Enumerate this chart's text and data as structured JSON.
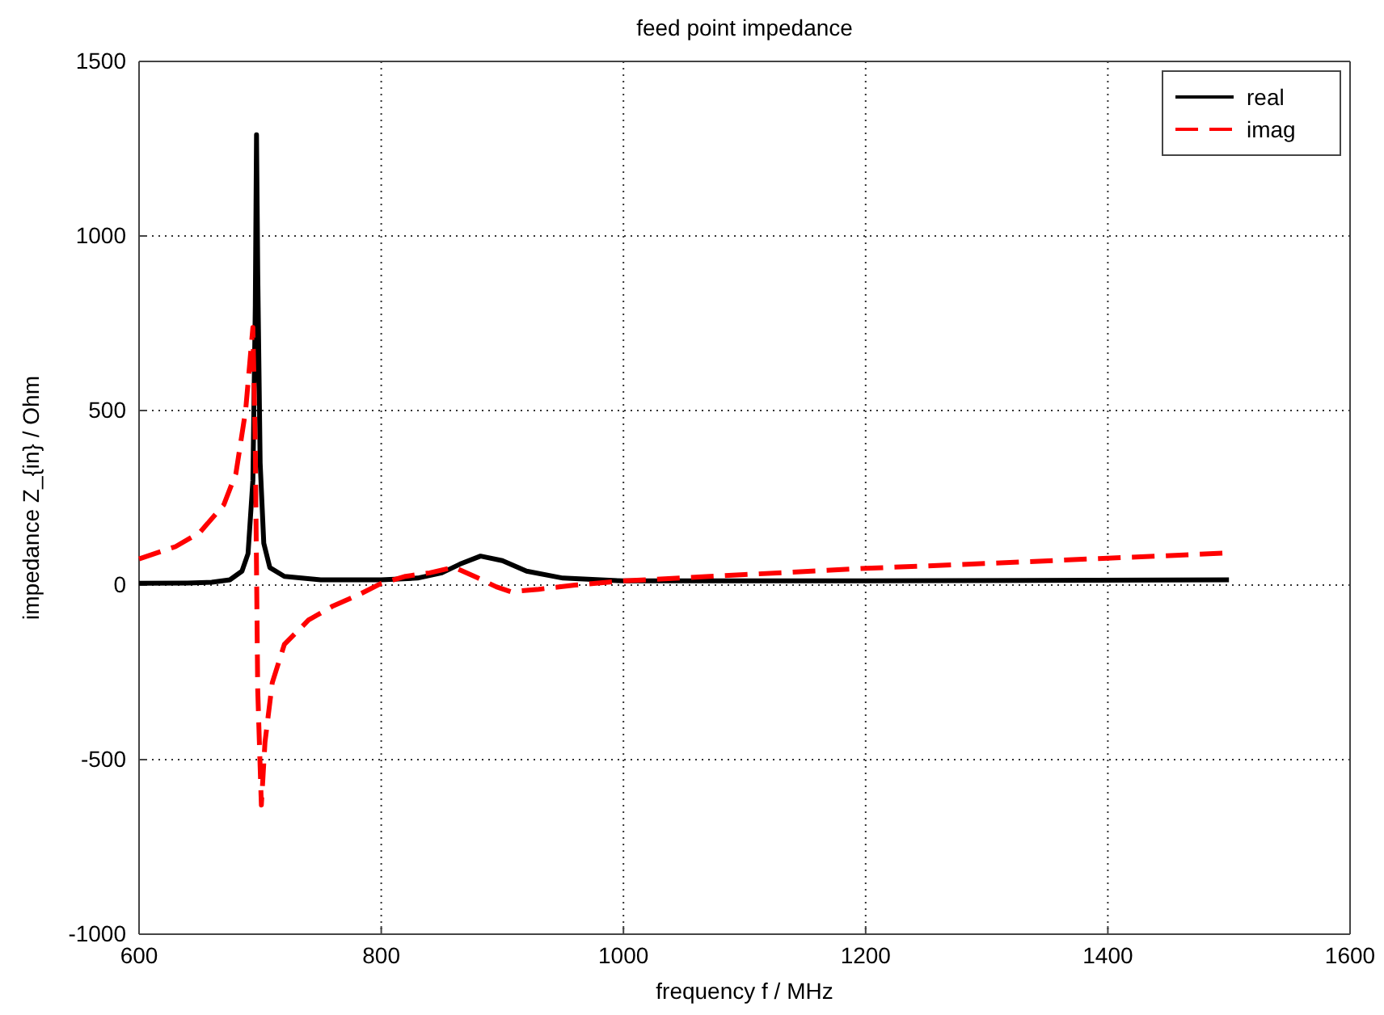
{
  "chart_data": {
    "type": "line",
    "title": "feed point impedance",
    "xlabel": "frequency f / MHz",
    "ylabel": "impedance Z_{in} / Ohm",
    "xlim": [
      600,
      1600
    ],
    "xticks": [
      600,
      800,
      1000,
      1200,
      1400,
      1600
    ],
    "ylim": [
      -1000,
      1500
    ],
    "yticks": [
      -1000,
      -500,
      0,
      500,
      1000,
      1500
    ],
    "grid": true,
    "legend": "top right",
    "series": [
      {
        "name": "real",
        "color": "#000000",
        "line_style": "solid",
        "x": [
          600,
          640,
          660,
          675,
          685,
          690,
          694,
          696,
          697,
          698,
          700,
          703,
          708,
          720,
          750,
          800,
          830,
          850,
          865,
          882,
          900,
          920,
          950,
          1000,
          1200,
          1500
        ],
        "values": [
          5,
          6,
          8,
          15,
          40,
          90,
          300,
          800,
          1290,
          900,
          350,
          120,
          50,
          25,
          15,
          15,
          20,
          35,
          60,
          83,
          70,
          40,
          20,
          12,
          12,
          15
        ]
      },
      {
        "name": "imag",
        "color": "#ff0000",
        "line_style": "dashed",
        "x": [
          600,
          630,
          650,
          670,
          680,
          688,
          694,
          696,
          698,
          701,
          704,
          710,
          720,
          740,
          760,
          780,
          800,
          820,
          840,
          860,
          880,
          895,
          907,
          930,
          960,
          1000,
          1100,
          1200,
          1300,
          1400,
          1500
        ],
        "values": [
          75,
          110,
          150,
          230,
          320,
          500,
          738,
          400,
          -300,
          -630,
          -450,
          -280,
          -170,
          -100,
          -60,
          -30,
          5,
          25,
          35,
          51,
          20,
          -5,
          -19,
          -12,
          0,
          12,
          30,
          48,
          62,
          77,
          92
        ]
      }
    ]
  }
}
